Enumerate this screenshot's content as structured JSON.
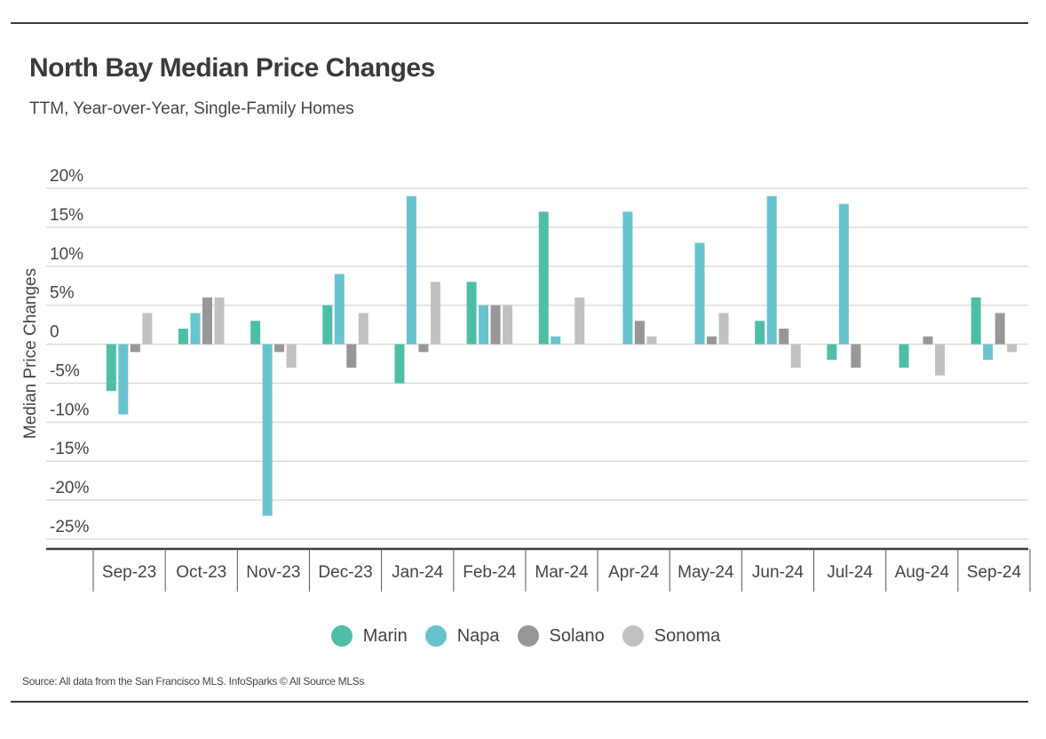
{
  "header": {
    "title": "North Bay Median Price Changes",
    "subtitle": "TTM, Year-over-Year, Single-Family Homes"
  },
  "footer": {
    "source": "Source:  All data from the San Francisco MLS. InfoSparks © All Source MLSs"
  },
  "chart_data": {
    "type": "bar",
    "title": "North Bay Median Price Changes",
    "subtitle": "TTM, Year-over-Year, Single-Family Homes",
    "xlabel": "",
    "ylabel": "Median Price Changes",
    "ylim": [
      -25,
      20
    ],
    "yticks": [
      20,
      15,
      10,
      5,
      0,
      -5,
      -10,
      -15,
      -20,
      -25
    ],
    "ytick_labels": [
      "20%",
      "15%",
      "10%",
      "5%",
      "0",
      "-5%",
      "-10%",
      "-15%",
      "-20%",
      "-25%"
    ],
    "grid": true,
    "legend_position": "bottom-center",
    "categories": [
      "Sep-23",
      "Oct-23",
      "Nov-23",
      "Dec-23",
      "Jan-24",
      "Feb-24",
      "Mar-24",
      "Apr-24",
      "May-24",
      "Jun-24",
      "Jul-24",
      "Aug-24",
      "Sep-24"
    ],
    "series": [
      {
        "name": "Marin",
        "color": "#4dbfa8",
        "values": [
          -6,
          2,
          3,
          5,
          -5,
          8,
          17,
          0,
          0,
          3,
          -2,
          -3,
          6
        ]
      },
      {
        "name": "Napa",
        "color": "#69c3cf",
        "values": [
          -9,
          4,
          -22,
          9,
          19,
          5,
          1,
          17,
          13,
          19,
          18,
          0,
          -2
        ]
      },
      {
        "name": "Solano",
        "color": "#979797",
        "values": [
          -1,
          6,
          -1,
          -3,
          -1,
          5,
          0,
          3,
          1,
          2,
          -3,
          1,
          4
        ]
      },
      {
        "name": "Sonoma",
        "color": "#c1c1c1",
        "values": [
          4,
          6,
          -3,
          4,
          8,
          5,
          6,
          1,
          4,
          -3,
          0,
          -4,
          -1
        ]
      }
    ]
  }
}
